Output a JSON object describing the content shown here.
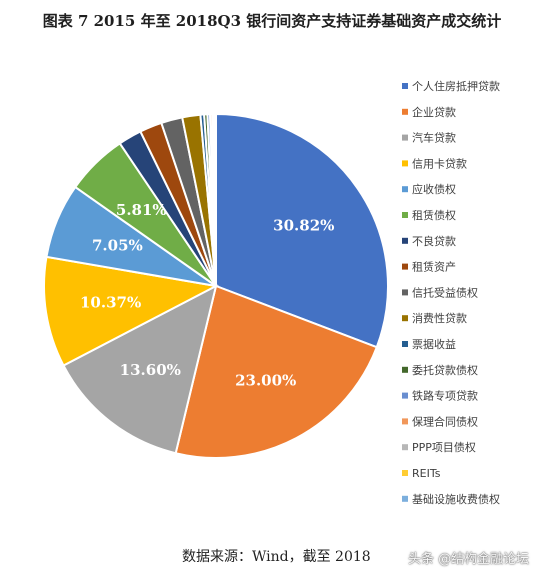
{
  "chart_data": {
    "type": "pie",
    "title": "图表 7 2015 年至 2018Q3 银行间资产支持证券基础资产成交统计",
    "legend_position": "right",
    "slices": [
      {
        "name": "个人住房抵押贷款",
        "value": 30.82,
        "label": "30.82%",
        "color": "#4472c4"
      },
      {
        "name": "企业贷款",
        "value": 23.0,
        "label": "23.00%",
        "color": "#ed7d31"
      },
      {
        "name": "汽车贷款",
        "value": 13.6,
        "label": "13.60%",
        "color": "#a5a5a5"
      },
      {
        "name": "信用卡贷款",
        "value": 10.37,
        "label": "10.37%",
        "color": "#ffc000"
      },
      {
        "name": "应收债权",
        "value": 7.05,
        "label": "7.05%",
        "color": "#5b9bd5"
      },
      {
        "name": "租赁债权",
        "value": 5.81,
        "label": "5.81%",
        "color": "#70ad47"
      },
      {
        "name": "不良贷款",
        "value": 2.2,
        "label": "",
        "color": "#264478"
      },
      {
        "name": "租赁资产",
        "value": 2.1,
        "label": "",
        "color": "#9e480e"
      },
      {
        "name": "信托受益债权",
        "value": 2.0,
        "label": "",
        "color": "#636363"
      },
      {
        "name": "消费性贷款",
        "value": 1.7,
        "label": "",
        "color": "#997300"
      },
      {
        "name": "票据收益",
        "value": 0.35,
        "label": "",
        "color": "#255e91"
      },
      {
        "name": "委托贷款债权",
        "value": 0.3,
        "label": "",
        "color": "#43682b"
      },
      {
        "name": "铁路专项贷款",
        "value": 0.25,
        "label": "",
        "color": "#698ed0"
      },
      {
        "name": "保理合同债权",
        "value": 0.2,
        "label": "",
        "color": "#f1975a"
      },
      {
        "name": "PPP项目债权",
        "value": 0.15,
        "label": "",
        "color": "#b7b7b7"
      },
      {
        "name": "REITs",
        "value": 0.1,
        "label": "",
        "color": "#ffcd33"
      },
      {
        "name": "基础设施收费债权",
        "value": 0.1,
        "label": "",
        "color": "#7cafdd"
      }
    ]
  },
  "source": "数据来源：Wind，截至 2018",
  "watermark": "头条 @结构金融论坛"
}
